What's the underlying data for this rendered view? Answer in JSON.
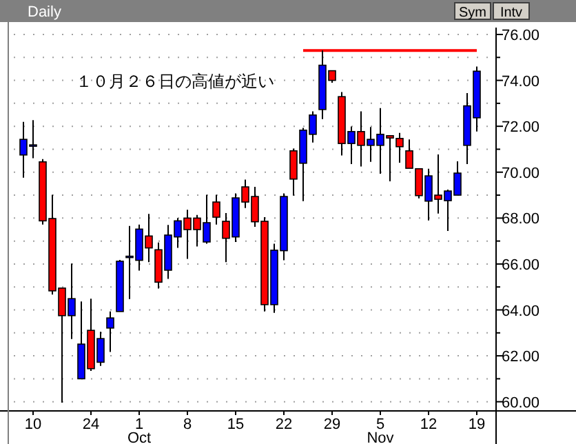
{
  "chart_data": {
    "type": "candlestick",
    "title": "Daily",
    "categories": [
      null,
      "10",
      null,
      null,
      null,
      null,
      null,
      "24",
      null,
      null,
      null,
      null,
      "1\nOct",
      null,
      null,
      null,
      null,
      "8",
      null,
      null,
      null,
      null,
      "15",
      null,
      null,
      null,
      null,
      "22",
      null,
      null,
      null,
      null,
      "29",
      null,
      null,
      null,
      null,
      "5\nNov",
      null,
      null,
      null,
      null,
      "12",
      null,
      null,
      null,
      null,
      "19"
    ],
    "ohlc": [
      [
        70.75,
        72.19,
        69.76,
        71.43
      ],
      [
        71.19,
        72.27,
        70.61,
        71.19
      ],
      [
        70.45,
        70.57,
        67.72,
        67.88
      ],
      [
        67.98,
        69.02,
        64.67,
        64.83
      ],
      [
        64.95,
        64.95,
        59.96,
        63.75
      ],
      [
        63.75,
        66.02,
        62.73,
        64.49
      ],
      [
        61.0,
        64.37,
        61.0,
        62.51
      ],
      [
        63.11,
        64.49,
        61.34,
        61.44
      ],
      [
        61.72,
        63.05,
        61.56,
        62.75
      ],
      [
        63.21,
        63.93,
        62.17,
        63.65
      ],
      [
        63.93,
        66.18,
        63.93,
        66.12
      ],
      [
        66.34,
        67.66,
        64.47,
        66.34
      ],
      [
        66.16,
        67.72,
        65.71,
        67.52
      ],
      [
        67.22,
        68.18,
        66.08,
        66.7
      ],
      [
        66.62,
        66.94,
        64.93,
        65.21
      ],
      [
        65.73,
        67.7,
        65.35,
        67.26
      ],
      [
        67.18,
        68.0,
        66.7,
        67.88
      ],
      [
        68.0,
        68.36,
        66.22,
        67.5
      ],
      [
        68.0,
        68.14,
        66.76,
        67.5
      ],
      [
        66.96,
        69.02,
        66.88,
        67.8
      ],
      [
        68.7,
        69.02,
        67.72,
        68.04
      ],
      [
        67.86,
        68.22,
        66.08,
        67.12
      ],
      [
        67.18,
        69.08,
        66.96,
        68.88
      ],
      [
        69.36,
        69.68,
        68.44,
        68.7
      ],
      [
        68.94,
        69.36,
        67.62,
        67.84
      ],
      [
        67.86,
        68.04,
        63.93,
        64.23
      ],
      [
        64.23,
        66.88,
        63.87,
        66.6
      ],
      [
        66.58,
        69.08,
        66.16,
        68.94
      ],
      [
        70.93,
        71.03,
        68.98,
        69.7
      ],
      [
        70.39,
        71.93,
        68.74,
        71.83
      ],
      [
        71.65,
        72.65,
        71.29,
        72.49
      ],
      [
        72.73,
        75.3,
        72.31,
        74.66
      ],
      [
        74.42,
        74.42,
        73.9,
        74.0
      ],
      [
        73.29,
        73.49,
        70.73,
        71.25
      ],
      [
        71.25,
        71.99,
        70.35,
        71.77
      ],
      [
        71.77,
        72.65,
        70.25,
        71.17
      ],
      [
        71.17,
        71.97,
        70.45,
        71.43
      ],
      [
        71.17,
        72.79,
        69.93,
        71.65
      ],
      [
        71.59,
        71.59,
        69.6,
        71.49
      ],
      [
        71.47,
        71.71,
        70.41,
        71.11
      ],
      [
        70.93,
        71.43,
        70.17,
        70.17
      ],
      [
        70.15,
        70.15,
        68.86,
        68.98
      ],
      [
        68.74,
        70.15,
        67.9,
        69.84
      ],
      [
        69.0,
        70.77,
        68.2,
        68.82
      ],
      [
        68.76,
        69.24,
        67.44,
        69.18
      ],
      [
        69.0,
        70.47,
        69.0,
        69.96
      ],
      [
        71.17,
        73.45,
        70.35,
        72.89
      ],
      [
        72.37,
        74.6,
        71.77,
        74.4
      ]
    ],
    "colors": [
      "#0000ff",
      "#0000ff",
      "#ff0000",
      "#ff0000",
      "#ff0000",
      "#0000ff",
      "#0000ff",
      "#ff0000",
      "#0000ff",
      "#0000ff",
      "#0000ff",
      "#0000ff",
      "#0000ff",
      "#ff0000",
      "#ff0000",
      "#0000ff",
      "#0000ff",
      "#ff0000",
      "#ff0000",
      "#0000ff",
      "#ff0000",
      "#ff0000",
      "#0000ff",
      "#ff0000",
      "#ff0000",
      "#ff0000",
      "#0000ff",
      "#0000ff",
      "#ff0000",
      "#0000ff",
      "#0000ff",
      "#0000ff",
      "#ff0000",
      "#ff0000",
      "#0000ff",
      "#ff0000",
      "#0000ff",
      "#0000ff",
      "#ff0000",
      "#ff0000",
      "#ff0000",
      "#ff0000",
      "#0000ff",
      "#ff0000",
      "#0000ff",
      "#0000ff",
      "#0000ff",
      "#0000ff"
    ],
    "series": [
      {
        "type": "line",
        "color": "#ff0000",
        "values": [
          null,
          null,
          null,
          null,
          null,
          null,
          null,
          null,
          null,
          null,
          null,
          null,
          null,
          null,
          null,
          null,
          null,
          null,
          null,
          null,
          null,
          null,
          null,
          null,
          null,
          null,
          null,
          null,
          null,
          75.3,
          75.3,
          75.3,
          75.3,
          75.3,
          75.3,
          75.3,
          75.3,
          75.3,
          75.3,
          75.3,
          75.3,
          75.3,
          75.3,
          75.3,
          75.3,
          75.3,
          75.3,
          75.3
        ]
      }
    ],
    "ylim": [
      59.6,
      76.3
    ],
    "yticks": [
      {
        "value": 60,
        "label": "60.00"
      },
      {
        "value": 61,
        "label": null
      },
      {
        "value": 62,
        "label": "62.00"
      },
      {
        "value": 63,
        "label": null
      },
      {
        "value": 64,
        "label": "64.00"
      },
      {
        "value": 65,
        "label": null
      },
      {
        "value": 66,
        "label": "66.00"
      },
      {
        "value": 67,
        "label": null
      },
      {
        "value": 68,
        "label": "68.00"
      },
      {
        "value": 69,
        "label": null
      },
      {
        "value": 70,
        "label": "70.00"
      },
      {
        "value": 71,
        "label": null
      },
      {
        "value": 72,
        "label": "72.00"
      },
      {
        "value": 73,
        "label": null
      },
      {
        "value": 74,
        "label": "74.00"
      },
      {
        "value": 75,
        "label": null
      },
      {
        "value": 76,
        "label": "76.00"
      }
    ],
    "grid": "y",
    "annotations": [
      "１０月２６日の高値が近い",
      "Sym",
      "Intv"
    ]
  }
}
